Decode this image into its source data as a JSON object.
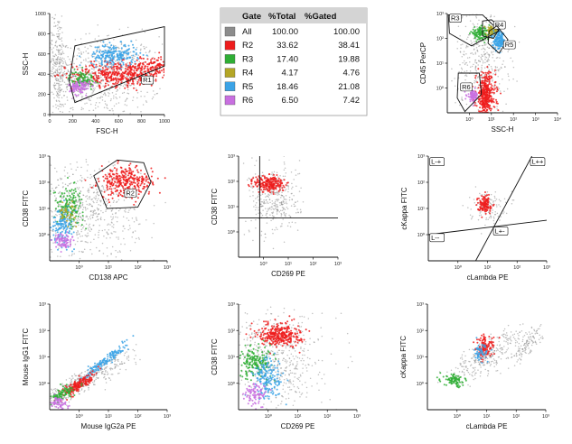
{
  "colors": {
    "All": "#8c8c8c",
    "R2": "#ee1c1c",
    "R3": "#2fae35",
    "R4": "#b4a626",
    "R5": "#3ba3e6",
    "R6": "#c86fe0",
    "grid": "#222222"
  },
  "gate_table": {
    "headers": [
      "Gate",
      "%Total",
      "%Gated"
    ],
    "rows": [
      {
        "gate": "All",
        "total": "100.00",
        "gated": "100.00",
        "color": "#8c8c8c"
      },
      {
        "gate": "R2",
        "total": "33.62",
        "gated": "38.41",
        "color": "#ee1c1c"
      },
      {
        "gate": "R3",
        "total": "17.40",
        "gated": "19.88",
        "color": "#2fae35"
      },
      {
        "gate": "R4",
        "total": "4.17",
        "gated": "4.76",
        "color": "#b4a626"
      },
      {
        "gate": "R5",
        "total": "18.46",
        "gated": "21.08",
        "color": "#3ba3e6"
      },
      {
        "gate": "R6",
        "total": "6.50",
        "gated": "7.42",
        "color": "#c86fe0"
      }
    ]
  },
  "chart_data": [
    {
      "id": "p1",
      "type": "scatter",
      "title": "",
      "xlabel": "FSC-H",
      "ylabel": "SSC-H",
      "xscale": "linear",
      "yscale": "linear",
      "xlim": [
        0,
        1000
      ],
      "ylim": [
        0,
        1000
      ],
      "xticks": [
        "0",
        "200",
        "400",
        "600",
        "800",
        "1000"
      ],
      "yticks": [
        "0",
        "200",
        "400",
        "600",
        "800",
        "1000"
      ],
      "gates": [
        {
          "name": "R1",
          "label_at": [
            800,
            320
          ],
          "polygon": [
            [
              170,
              330
            ],
            [
              220,
              680
            ],
            [
              1000,
              870
            ],
            [
              1000,
              480
            ],
            [
              220,
              120
            ]
          ]
        }
      ],
      "clusters": [
        {
          "color": "All",
          "cx": 450,
          "cy": 380,
          "sx": 260,
          "sy": 200,
          "n": 700
        },
        {
          "color": "All",
          "cx": 70,
          "cy": 500,
          "sx": 40,
          "sy": 260,
          "n": 260
        },
        {
          "color": "R2",
          "cx": 600,
          "cy": 400,
          "sx": 200,
          "sy": 60,
          "n": 420
        },
        {
          "color": "R2",
          "cx": 900,
          "cy": 480,
          "sx": 90,
          "sy": 50,
          "n": 120
        },
        {
          "color": "R5",
          "cx": 560,
          "cy": 590,
          "sx": 100,
          "sy": 55,
          "n": 220
        },
        {
          "color": "R3",
          "cx": 280,
          "cy": 350,
          "sx": 55,
          "sy": 40,
          "n": 110
        },
        {
          "color": "R6",
          "cx": 260,
          "cy": 270,
          "sx": 45,
          "sy": 40,
          "n": 120
        }
      ]
    },
    {
      "id": "p3",
      "type": "scatter",
      "title": "",
      "xlabel": "SSC-H",
      "ylabel": "CD45 PerCP",
      "xscale": "log",
      "yscale": "log",
      "xlim": [
        -1,
        4
      ],
      "ylim": [
        -1,
        3
      ],
      "xticks": [
        "10⁰",
        "10¹",
        "10²",
        "10³",
        "10⁴"
      ],
      "xtick_exp": [
        0,
        1,
        2,
        3,
        4
      ],
      "yticks": [
        "10⁰",
        "10¹",
        "10²",
        "10³"
      ],
      "ytick_exp": [
        0,
        1,
        2,
        3
      ],
      "gates": [
        {
          "name": "R3",
          "label_at": [
            -0.9,
            2.72
          ],
          "polygon": [
            [
              -0.95,
              2.95
            ],
            [
              0.6,
              2.95
            ],
            [
              1.35,
              2.3
            ],
            [
              0.1,
              1.7
            ],
            [
              -0.9,
              2.2
            ]
          ]
        },
        {
          "name": "R4",
          "label_at": [
            1.1,
            2.45
          ],
          "polygon": [
            [
              0.6,
              2.7
            ],
            [
              1.0,
              2.75
            ],
            [
              1.4,
              2.45
            ],
            [
              1.1,
              2.0
            ],
            [
              0.6,
              2.1
            ]
          ]
        },
        {
          "name": "R5",
          "label_at": [
            1.55,
            1.65
          ],
          "polygon": [
            [
              0.9,
              2.3
            ],
            [
              1.25,
              2.5
            ],
            [
              1.75,
              1.95
            ],
            [
              1.35,
              1.4
            ],
            [
              0.85,
              1.8
            ]
          ]
        },
        {
          "name": "R6",
          "label_at": [
            -0.4,
            -0.05
          ],
          "polygon": [
            [
              -0.5,
              0.6
            ],
            [
              0.45,
              0.6
            ],
            [
              0.55,
              -0.25
            ],
            [
              -0.2,
              -0.95
            ],
            [
              -0.55,
              -0.4
            ]
          ]
        }
      ],
      "clusters": [
        {
          "color": "All",
          "cx": 0.6,
          "cy": 1.2,
          "sx": 0.6,
          "sy": 1.1,
          "n": 420
        },
        {
          "color": "R2",
          "cx": 0.75,
          "cy": -0.3,
          "sx": 0.22,
          "sy": 0.45,
          "n": 380
        },
        {
          "color": "R3",
          "cx": 0.5,
          "cy": 2.2,
          "sx": 0.22,
          "sy": 0.12,
          "n": 120
        },
        {
          "color": "R4",
          "cx": 1.05,
          "cy": 2.3,
          "sx": 0.12,
          "sy": 0.1,
          "n": 70
        },
        {
          "color": "R5",
          "cx": 1.35,
          "cy": 1.9,
          "sx": 0.13,
          "sy": 0.18,
          "n": 160
        },
        {
          "color": "R6",
          "cx": 0.15,
          "cy": -0.3,
          "sx": 0.12,
          "sy": 0.12,
          "n": 80
        }
      ]
    },
    {
      "id": "p4",
      "type": "scatter",
      "title": "",
      "xlabel": "CD138 APC",
      "ylabel": "CD38 FITC",
      "xscale": "log",
      "yscale": "log",
      "xlim": [
        -1,
        3
      ],
      "ylim": [
        -1,
        3
      ],
      "xticks": [
        "10⁰",
        "10¹",
        "10²",
        "10³"
      ],
      "xtick_exp": [
        0,
        1,
        2,
        3
      ],
      "yticks": [
        "10⁰",
        "10¹",
        "10²",
        "10³"
      ],
      "ytick_exp": [
        0,
        1,
        2,
        3
      ],
      "gates": [
        {
          "name": "R2",
          "label_at": [
            1.55,
            1.5
          ],
          "polygon": [
            [
              0.5,
              2.25
            ],
            [
              1.3,
              2.85
            ],
            [
              2.2,
              2.75
            ],
            [
              2.45,
              2.0
            ],
            [
              2.0,
              1.05
            ],
            [
              0.95,
              1.0
            ]
          ]
        }
      ],
      "clusters": [
        {
          "color": "All",
          "cx": 0.2,
          "cy": 0.9,
          "sx": 0.9,
          "sy": 0.9,
          "n": 650
        },
        {
          "color": "R2",
          "cx": 1.6,
          "cy": 2.0,
          "sx": 0.45,
          "sy": 0.3,
          "n": 320
        },
        {
          "color": "R3",
          "cx": -0.35,
          "cy": 1.1,
          "sx": 0.25,
          "sy": 0.35,
          "n": 150
        },
        {
          "color": "R5",
          "cx": -0.55,
          "cy": 0.4,
          "sx": 0.2,
          "sy": 0.35,
          "n": 140
        },
        {
          "color": "R4",
          "cx": -0.4,
          "cy": 0.85,
          "sx": 0.15,
          "sy": 0.2,
          "n": 40
        },
        {
          "color": "R6",
          "cx": -0.55,
          "cy": -0.25,
          "sx": 0.15,
          "sy": 0.15,
          "n": 80
        }
      ]
    },
    {
      "id": "p5",
      "type": "scatter",
      "title": "",
      "xlabel": "CD269 PE",
      "ylabel": "CD38 FITC",
      "xscale": "log",
      "yscale": "log",
      "xlim": [
        -1,
        3
      ],
      "ylim": [
        -1,
        3
      ],
      "xticks": [
        "10⁰",
        "10¹",
        "10²",
        "10³"
      ],
      "xtick_exp": [
        0,
        1,
        2,
        3
      ],
      "yticks": [
        "10⁰",
        "10¹",
        "10²",
        "10³"
      ],
      "ytick_exp": [
        0,
        1,
        2,
        3
      ],
      "quadrant": {
        "x": -0.15,
        "y": 0.55
      },
      "clusters": [
        {
          "color": "All",
          "cx": 0.45,
          "cy": 1.3,
          "sx": 0.5,
          "sy": 0.7,
          "n": 350
        },
        {
          "color": "R2",
          "cx": 0.25,
          "cy": 1.9,
          "sx": 0.3,
          "sy": 0.17,
          "n": 230
        }
      ]
    },
    {
      "id": "p6",
      "type": "scatter",
      "title": "",
      "xlabel": "cLambda PE",
      "ylabel": "cKappa FITC",
      "xscale": "log",
      "yscale": "log",
      "xlim": [
        -1,
        3
      ],
      "ylim": [
        -1,
        3
      ],
      "xticks": [
        "10⁰",
        "10¹",
        "10²",
        "10³"
      ],
      "xtick_exp": [
        0,
        1,
        2,
        3
      ],
      "yticks": [
        "10⁰",
        "10¹",
        "10²",
        "10³"
      ],
      "ytick_exp": [
        0,
        1,
        2,
        3
      ],
      "regions": [
        {
          "name": "L-+",
          "at": [
            -0.95,
            2.7
          ]
        },
        {
          "name": "L++",
          "at": [
            2.45,
            2.7
          ]
        },
        {
          "name": "L--",
          "at": [
            -0.95,
            -0.2
          ]
        },
        {
          "name": "L+-",
          "at": [
            1.2,
            0.05
          ]
        }
      ],
      "lines": [
        [
          [
            -1,
            0.0
          ],
          [
            3,
            0.55
          ]
        ],
        [
          [
            0.6,
            -1
          ],
          [
            2.5,
            3
          ]
        ]
      ],
      "clusters": [
        {
          "color": "All",
          "cx": 1.0,
          "cy": 1.1,
          "sx": 0.3,
          "sy": 0.3,
          "n": 120
        },
        {
          "color": "R2",
          "cx": 0.9,
          "cy": 1.15,
          "sx": 0.12,
          "sy": 0.16,
          "n": 120
        }
      ]
    },
    {
      "id": "p7",
      "type": "scatter",
      "title": "",
      "xlabel": "Mouse IgG2a PE",
      "ylabel": "Mouse IgG1 FITC",
      "xscale": "log",
      "yscale": "log",
      "xlim": [
        -1,
        3
      ],
      "ylim": [
        -1,
        3
      ],
      "xticks": [
        "10⁰",
        "10¹",
        "10²",
        "10³"
      ],
      "xtick_exp": [
        0,
        1,
        2,
        3
      ],
      "yticks": [
        "10⁰",
        "10¹",
        "10²",
        "10³"
      ],
      "ytick_exp": [
        0,
        1,
        2,
        3
      ],
      "clusters": [
        {
          "color": "All",
          "cx": 0.0,
          "cy": 0.0,
          "sx": 0.9,
          "sy": 0.55,
          "n": 450,
          "rho": 0.92
        },
        {
          "color": "R5",
          "cx": 0.9,
          "cy": 0.85,
          "sx": 0.4,
          "sy": 0.35,
          "n": 150,
          "rho": 0.95
        },
        {
          "color": "R2",
          "cx": 0.0,
          "cy": -0.05,
          "sx": 0.28,
          "sy": 0.22,
          "n": 170,
          "rho": 0.85
        },
        {
          "color": "R3",
          "cx": -0.55,
          "cy": -0.4,
          "sx": 0.2,
          "sy": 0.15,
          "n": 90,
          "rho": 0.7
        },
        {
          "color": "R6",
          "cx": -0.7,
          "cy": -0.75,
          "sx": 0.15,
          "sy": 0.12,
          "n": 60
        }
      ]
    },
    {
      "id": "p8",
      "type": "scatter",
      "title": "",
      "xlabel": "CD269 PE",
      "ylabel": "CD38 FITC",
      "xscale": "log",
      "yscale": "log",
      "xlim": [
        -1,
        3
      ],
      "ylim": [
        -1,
        3
      ],
      "xticks": [
        "10⁰",
        "10¹",
        "10²",
        "10³"
      ],
      "xtick_exp": [
        0,
        1,
        2,
        3
      ],
      "yticks": [
        "10⁰",
        "10¹",
        "10²",
        "10³"
      ],
      "ytick_exp": [
        0,
        1,
        2,
        3
      ],
      "clusters": [
        {
          "color": "All",
          "cx": 0.2,
          "cy": 0.9,
          "sx": 0.8,
          "sy": 0.9,
          "n": 600
        },
        {
          "color": "R2",
          "cx": 0.4,
          "cy": 1.85,
          "sx": 0.35,
          "sy": 0.22,
          "n": 320
        },
        {
          "color": "R3",
          "cx": -0.4,
          "cy": 0.8,
          "sx": 0.3,
          "sy": 0.3,
          "n": 180
        },
        {
          "color": "R5",
          "cx": 0.0,
          "cy": 0.2,
          "sx": 0.25,
          "sy": 0.4,
          "n": 170
        },
        {
          "color": "R6",
          "cx": -0.4,
          "cy": -0.4,
          "sx": 0.2,
          "sy": 0.2,
          "n": 90
        }
      ]
    },
    {
      "id": "p9",
      "type": "scatter",
      "title": "",
      "xlabel": "cLambda PE",
      "ylabel": "cKappa FITC",
      "xscale": "log",
      "yscale": "log",
      "xlim": [
        -1,
        3
      ],
      "ylim": [
        -1,
        3
      ],
      "xticks": [
        "10⁰",
        "10¹",
        "10²",
        "10³"
      ],
      "xtick_exp": [
        0,
        1,
        2,
        3
      ],
      "yticks": [
        "10⁰",
        "10¹",
        "10²",
        "10³"
      ],
      "ytick_exp": [
        0,
        1,
        2,
        3
      ],
      "clusters": [
        {
          "color": "All",
          "cx": 1.0,
          "cy": 1.05,
          "sx": 0.6,
          "sy": 0.5,
          "n": 300,
          "rho": 0.75
        },
        {
          "color": "All",
          "cx": 2.3,
          "cy": 1.4,
          "sx": 0.3,
          "sy": 0.35,
          "n": 120,
          "rho": 0.8
        },
        {
          "color": "R2",
          "cx": 0.95,
          "cy": 1.35,
          "sx": 0.15,
          "sy": 0.22,
          "n": 120
        },
        {
          "color": "R5",
          "cx": 0.8,
          "cy": 1.15,
          "sx": 0.12,
          "sy": 0.15,
          "n": 60
        },
        {
          "color": "R3",
          "cx": -0.1,
          "cy": 0.1,
          "sx": 0.18,
          "sy": 0.12,
          "n": 90
        }
      ]
    }
  ]
}
